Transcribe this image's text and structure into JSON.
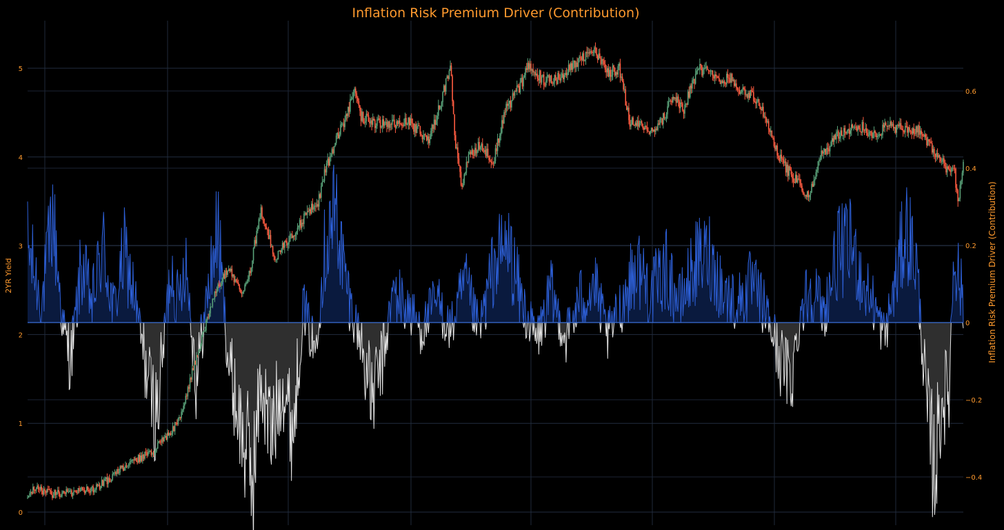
{
  "chart_data": {
    "title": "Inflation Risk Premium Driver (Contribution)",
    "type": "candlestick+area",
    "x_range_index": [
      0,
      1000
    ],
    "y_left": {
      "label": "2YR Yield",
      "range": [
        0,
        5.4
      ],
      "ticks": [
        0,
        1,
        2,
        3,
        4,
        5
      ],
      "tick_labels": [
        "0",
        "1",
        "2",
        "3",
        "4",
        "5"
      ]
    },
    "y_right": {
      "label": "Inflation Risk Premium Driver (Contribution)",
      "range": [
        -0.51,
        0.72
      ],
      "ticks": [
        -0.4,
        -0.2,
        0,
        0.2,
        0.4,
        0.6
      ],
      "tick_labels": [
        "−0.4",
        "−0.2",
        "0",
        "0.2",
        "0.4",
        "0.6"
      ]
    },
    "grid": true,
    "legend": "none",
    "series": [
      {
        "kind": "candlestick",
        "up_color": "#5aa37a",
        "down_color": "#ff5c41",
        "keypoints": [
          [
            0,
            0.16
          ],
          [
            10,
            0.27
          ],
          [
            35,
            0.2
          ],
          [
            70,
            0.23
          ],
          [
            90,
            0.25
          ],
          [
            110,
            0.35
          ],
          [
            140,
            0.55
          ],
          [
            170,
            0.66
          ],
          [
            200,
            0.9
          ],
          [
            215,
            1.1
          ],
          [
            230,
            1.6
          ],
          [
            245,
            2.0
          ],
          [
            260,
            2.45
          ],
          [
            280,
            2.75
          ],
          [
            300,
            2.45
          ],
          [
            310,
            2.7
          ],
          [
            325,
            3.4
          ],
          [
            345,
            2.85
          ],
          [
            360,
            3.05
          ],
          [
            375,
            3.2
          ],
          [
            390,
            3.35
          ],
          [
            405,
            3.5
          ],
          [
            415,
            3.85
          ],
          [
            430,
            4.2
          ],
          [
            445,
            4.45
          ],
          [
            455,
            4.75
          ],
          [
            465,
            4.45
          ],
          [
            480,
            4.4
          ],
          [
            505,
            4.35
          ],
          [
            530,
            4.4
          ],
          [
            560,
            4.2
          ],
          [
            575,
            4.6
          ],
          [
            590,
            5.0
          ],
          [
            596,
            4.2
          ],
          [
            605,
            3.65
          ],
          [
            615,
            4.0
          ],
          [
            630,
            4.15
          ],
          [
            650,
            3.95
          ],
          [
            665,
            4.5
          ],
          [
            690,
            4.85
          ],
          [
            700,
            5.05
          ],
          [
            720,
            4.85
          ],
          [
            745,
            4.9
          ],
          [
            770,
            5.1
          ],
          [
            790,
            5.2
          ],
          [
            810,
            4.95
          ],
          [
            825,
            5.0
          ],
          [
            840,
            4.4
          ],
          [
            855,
            4.35
          ],
          [
            870,
            4.3
          ],
          [
            885,
            4.4
          ],
          [
            900,
            4.7
          ],
          [
            915,
            4.55
          ],
          [
            935,
            5.0
          ],
          [
            950,
            4.95
          ],
          [
            965,
            4.85
          ],
          [
            980,
            4.9
          ],
          [
            995,
            4.75
          ],
          [
            1010,
            4.7
          ],
          [
            1030,
            4.45
          ],
          [
            1045,
            4.05
          ],
          [
            1060,
            3.85
          ],
          [
            1075,
            3.7
          ],
          [
            1085,
            3.55
          ],
          [
            1095,
            3.65
          ],
          [
            1105,
            4.0
          ],
          [
            1125,
            4.2
          ],
          [
            1140,
            4.3
          ],
          [
            1160,
            4.35
          ],
          [
            1180,
            4.25
          ],
          [
            1200,
            4.35
          ],
          [
            1225,
            4.3
          ],
          [
            1245,
            4.3
          ],
          [
            1260,
            4.1
          ],
          [
            1275,
            3.95
          ],
          [
            1285,
            3.85
          ],
          [
            1292,
            3.9
          ],
          [
            1298,
            3.45
          ],
          [
            1305,
            3.95
          ]
        ]
      },
      {
        "kind": "area",
        "positive_color": "#2d5fd6",
        "negative_color": "#e6e6e6",
        "keypoints": [
          [
            0,
            0.2
          ],
          [
            20,
            0.05
          ],
          [
            35,
            0.28
          ],
          [
            50,
            -0.02
          ],
          [
            60,
            -0.1
          ],
          [
            75,
            0.15
          ],
          [
            90,
            0.05
          ],
          [
            105,
            0.2
          ],
          [
            120,
            0.03
          ],
          [
            135,
            0.18
          ],
          [
            150,
            0.06
          ],
          [
            165,
            -0.12
          ],
          [
            180,
            -0.25
          ],
          [
            200,
            0.15
          ],
          [
            210,
            0.05
          ],
          [
            220,
            0.18
          ],
          [
            235,
            -0.15
          ],
          [
            250,
            0.06
          ],
          [
            265,
            0.25
          ],
          [
            280,
            -0.1
          ],
          [
            300,
            -0.3
          ],
          [
            315,
            -0.4
          ],
          [
            325,
            -0.15
          ],
          [
            340,
            -0.3
          ],
          [
            355,
            -0.15
          ],
          [
            370,
            -0.28
          ],
          [
            385,
            0.05
          ],
          [
            400,
            -0.08
          ],
          [
            415,
            0.2
          ],
          [
            430,
            0.3
          ],
          [
            440,
            0.15
          ],
          [
            450,
            0.05
          ],
          [
            465,
            -0.05
          ],
          [
            480,
            -0.2
          ],
          [
            495,
            -0.1
          ],
          [
            510,
            0.08
          ],
          [
            530,
            0.04
          ],
          [
            550,
            -0.02
          ],
          [
            570,
            0.06
          ],
          [
            590,
            -0.02
          ],
          [
            610,
            0.1
          ],
          [
            630,
            -0.02
          ],
          [
            650,
            0.15
          ],
          [
            670,
            0.2
          ],
          [
            690,
            0.05
          ],
          [
            710,
            -0.05
          ],
          [
            730,
            0.08
          ],
          [
            750,
            -0.04
          ],
          [
            770,
            0.06
          ],
          [
            790,
            0.1
          ],
          [
            810,
            -0.04
          ],
          [
            830,
            0.06
          ],
          [
            850,
            0.15
          ],
          [
            870,
            0.08
          ],
          [
            890,
            0.14
          ],
          [
            910,
            0.05
          ],
          [
            930,
            0.15
          ],
          [
            950,
            0.18
          ],
          [
            970,
            0.08
          ],
          [
            990,
            0.05
          ],
          [
            1010,
            0.1
          ],
          [
            1030,
            0.03
          ],
          [
            1050,
            -0.1
          ],
          [
            1065,
            -0.15
          ],
          [
            1080,
            0.05
          ],
          [
            1095,
            0.1
          ],
          [
            1110,
            0.02
          ],
          [
            1130,
            0.18
          ],
          [
            1150,
            0.2
          ],
          [
            1165,
            0.1
          ],
          [
            1180,
            0.05
          ],
          [
            1195,
            -0.04
          ],
          [
            1210,
            0.1
          ],
          [
            1225,
            0.25
          ],
          [
            1240,
            0.15
          ],
          [
            1255,
            -0.25
          ],
          [
            1265,
            -0.38
          ],
          [
            1275,
            -0.2
          ],
          [
            1285,
            -0.18
          ],
          [
            1292,
            0.2
          ],
          [
            1300,
            0.1
          ],
          [
            1305,
            0.05
          ]
        ]
      }
    ]
  }
}
